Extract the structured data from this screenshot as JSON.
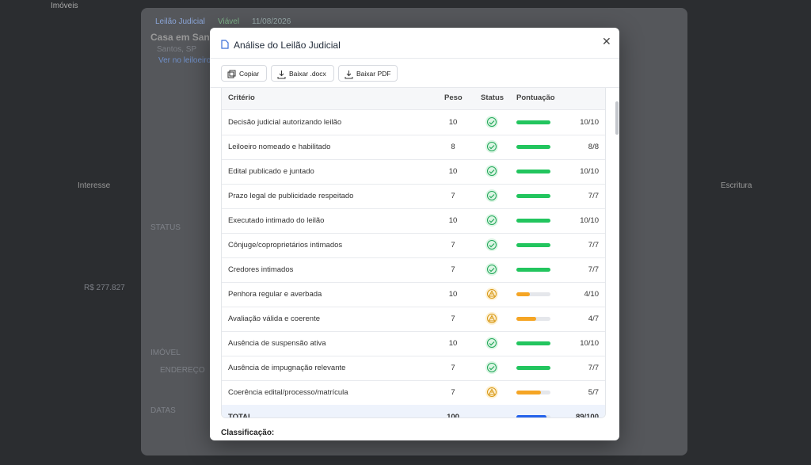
{
  "background": {
    "app_title": "Imóveis",
    "tag": "Leilão Judicial",
    "viability": "Viável",
    "date": "11/08/2026",
    "property": "Casa em Santos",
    "city": "Santos, SP",
    "link": "Ver no leiloeiro",
    "col_interest": "Interesse",
    "col_deed": "Escritura",
    "status": "STATUS",
    "imovel": "IMÓVEL",
    "address": "ENDEREÇO",
    "dates": "DATAS",
    "price": "R$ 277.827"
  },
  "modal": {
    "title": "Análise do Leilão Judicial",
    "buttons": [
      "Copiar",
      "Baixar .docx",
      "Baixar PDF"
    ],
    "table": {
      "headers": [
        "Critério",
        "Peso",
        "Status",
        "Pontuação"
      ],
      "rows": [
        {
          "criterion": "Decisão judicial autorizando leilão",
          "weight": 10,
          "status": "ok",
          "score": 10,
          "score_label": "10/10"
        },
        {
          "criterion": "Leiloeiro nomeado e habilitado",
          "weight": 8,
          "status": "ok",
          "score": 8,
          "score_label": "8/8"
        },
        {
          "criterion": "Edital publicado e juntado",
          "weight": 10,
          "status": "ok",
          "score": 10,
          "score_label": "10/10"
        },
        {
          "criterion": "Prazo legal de publicidade respeitado",
          "weight": 7,
          "status": "ok",
          "score": 7,
          "score_label": "7/7"
        },
        {
          "criterion": "Executado intimado do leilão",
          "weight": 10,
          "status": "ok",
          "score": 10,
          "score_label": "10/10"
        },
        {
          "criterion": "Cônjuge/coproprietários intimados",
          "weight": 7,
          "status": "ok",
          "score": 7,
          "score_label": "7/7"
        },
        {
          "criterion": "Credores intimados",
          "weight": 7,
          "status": "ok",
          "score": 7,
          "score_label": "7/7"
        },
        {
          "criterion": "Penhora regular e averbada",
          "weight": 10,
          "status": "warn",
          "score": 4,
          "score_label": "4/10"
        },
        {
          "criterion": "Avaliação válida e coerente",
          "weight": 7,
          "status": "warn",
          "score": 4,
          "score_label": "4/7"
        },
        {
          "criterion": "Ausência de suspensão ativa",
          "weight": 10,
          "status": "ok",
          "score": 10,
          "score_label": "10/10"
        },
        {
          "criterion": "Ausência de impugnação relevante",
          "weight": 7,
          "status": "ok",
          "score": 7,
          "score_label": "7/7"
        },
        {
          "criterion": "Coerência edital/processo/matrícula",
          "weight": 7,
          "status": "warn",
          "score": 5,
          "score_label": "5/7"
        }
      ],
      "total": {
        "label": "TOTAL",
        "weight": 100,
        "score": 89,
        "score_label": "89/100"
      }
    },
    "classification_label": "Classificação:"
  }
}
